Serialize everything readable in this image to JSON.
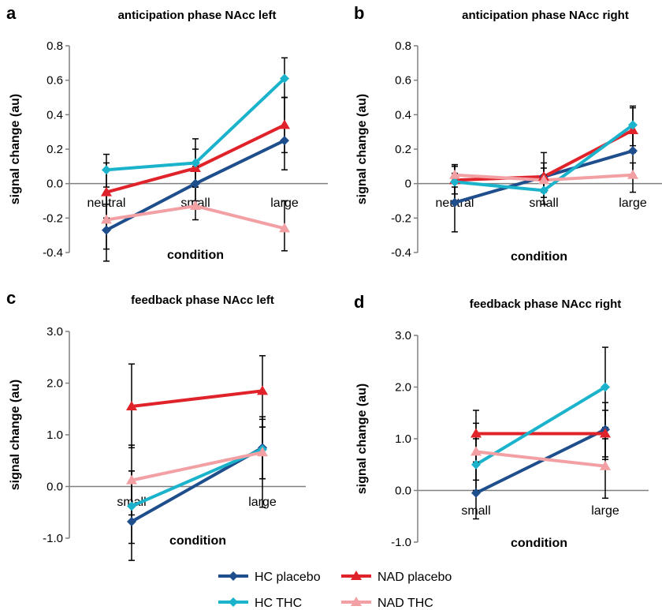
{
  "chart_data": [
    {
      "type": "line",
      "letter": "a",
      "title": "anticipation phase NAcc left",
      "xlabel": "condition",
      "ylabel": "signal change (au)",
      "categories": [
        "neutral",
        "small",
        "large"
      ],
      "ylim": [
        -0.4,
        0.8
      ],
      "yticks": [
        -0.4,
        -0.2,
        0.0,
        0.2,
        0.4,
        0.6,
        0.8
      ],
      "yticklabels": [
        "-0.4",
        "-0.2",
        "0.0",
        "0.2",
        "0.4",
        "0.6",
        "0.8"
      ],
      "grid": false,
      "series": [
        {
          "name": "HC placebo",
          "values": [
            -0.27,
            0.0,
            0.25
          ],
          "err_high": [
            -0.12,
            0.1,
            0.5
          ],
          "err_low": [
            -0.45,
            -0.1,
            0.08
          ]
        },
        {
          "name": "NAD placebo",
          "values": [
            -0.05,
            0.09,
            0.34
          ],
          "err_high": [
            0.12,
            0.2,
            0.5
          ],
          "err_low": [
            -0.2,
            -0.02,
            0.18
          ]
        },
        {
          "name": "HC THC",
          "values": [
            0.08,
            0.12,
            0.61
          ],
          "err_high": [
            0.17,
            0.26,
            0.73
          ],
          "err_low": [
            -0.02,
            -0.02,
            0.5
          ]
        },
        {
          "name": "NAD THC",
          "values": [
            -0.21,
            -0.13,
            -0.26
          ],
          "err_high": [
            -0.05,
            0.0,
            -0.1
          ],
          "err_low": [
            -0.38,
            -0.21,
            -0.39
          ]
        }
      ]
    },
    {
      "type": "line",
      "letter": "b",
      "title": "anticipation phase NAcc right",
      "xlabel": "condition",
      "ylabel": "signal change (au)",
      "categories": [
        "neutral",
        "small",
        "large"
      ],
      "ylim": [
        -0.4,
        0.8
      ],
      "yticks": [
        -0.4,
        -0.2,
        0.0,
        0.2,
        0.4,
        0.6,
        0.8
      ],
      "yticklabels": [
        "-0.4",
        "-0.2",
        "0",
        "0.2",
        "0.4",
        "0.6",
        "0.8"
      ],
      "grid": false,
      "series": [
        {
          "name": "HC placebo",
          "values": [
            -0.11,
            0.04,
            0.19
          ],
          "err_high": [
            0.06,
            0.18,
            0.3
          ],
          "err_low": [
            -0.28,
            -0.08,
            0.05
          ]
        },
        {
          "name": "NAD placebo",
          "values": [
            0.02,
            0.04,
            0.31
          ],
          "err_high": [
            0.11,
            0.12,
            0.44
          ],
          "err_low": [
            -0.06,
            -0.05,
            0.18
          ]
        },
        {
          "name": "HC THC",
          "values": [
            0.01,
            -0.04,
            0.34
          ],
          "err_high": [
            0.1,
            0.05,
            0.45
          ],
          "err_low": [
            -0.1,
            -0.12,
            0.22
          ]
        },
        {
          "name": "NAD THC",
          "values": [
            0.05,
            0.02,
            0.05
          ],
          "err_high": [
            0.11,
            0.09,
            0.12
          ],
          "err_low": [
            -0.02,
            -0.05,
            -0.05
          ]
        }
      ]
    },
    {
      "type": "line",
      "letter": "c",
      "title": "feedback phase NAcc left",
      "xlabel": "condition",
      "ylabel": "signal change (au)",
      "categories": [
        "small",
        "large"
      ],
      "ylim": [
        -1.0,
        3.0
      ],
      "yticks": [
        -1.0,
        0.0,
        1.0,
        2.0,
        3.0
      ],
      "yticklabels": [
        "-1.0",
        "0.0",
        "1.0",
        "2.0",
        "3.0"
      ],
      "grid": false,
      "series": [
        {
          "name": "HC placebo",
          "values": [
            -0.68,
            0.75
          ],
          "err_high": [
            0.3,
            1.35
          ],
          "err_low": [
            -1.43,
            0.15
          ]
        },
        {
          "name": "NAD placebo",
          "values": [
            1.55,
            1.85
          ],
          "err_high": [
            2.37,
            2.53
          ],
          "err_low": [
            0.75,
            1.15
          ]
        },
        {
          "name": "HC THC",
          "values": [
            -0.38,
            0.72
          ],
          "err_high": [
            0.3,
            1.3
          ],
          "err_low": [
            -1.1,
            -0.4
          ]
        },
        {
          "name": "NAD THC",
          "values": [
            0.12,
            0.66
          ],
          "err_high": [
            0.8,
            1.15
          ],
          "err_low": [
            -0.55,
            0.15
          ]
        }
      ]
    },
    {
      "type": "line",
      "letter": "d",
      "title": "feedback phase NAcc right",
      "xlabel": "condition",
      "ylabel": "signal change (au)",
      "categories": [
        "small",
        "large"
      ],
      "ylim": [
        -1.0,
        3.0
      ],
      "yticks": [
        -1.0,
        0.0,
        1.0,
        2.0,
        3.0
      ],
      "yticklabels": [
        "-1.0",
        "0.0",
        "1.0",
        "2.0",
        "3.0"
      ],
      "grid": false,
      "series": [
        {
          "name": "HC placebo",
          "values": [
            -0.05,
            1.18
          ],
          "err_high": [
            0.55,
            1.7
          ],
          "err_low": [
            -0.55,
            0.65
          ]
        },
        {
          "name": "NAD placebo",
          "values": [
            1.1,
            1.1
          ],
          "err_high": [
            1.55,
            1.55
          ],
          "err_low": [
            0.55,
            0.6
          ]
        },
        {
          "name": "HC THC",
          "values": [
            0.5,
            2.0
          ],
          "err_high": [
            1.0,
            2.77
          ],
          "err_low": [
            0.0,
            1.22
          ]
        },
        {
          "name": "NAD THC",
          "values": [
            0.75,
            0.47
          ],
          "err_high": [
            1.3,
            1.0
          ],
          "err_low": [
            0.2,
            -0.15
          ]
        }
      ]
    }
  ],
  "legend": {
    "placement": "bottom-center",
    "entries": [
      {
        "name": "HC placebo",
        "color": "#1f4e8c",
        "marker": "diamond"
      },
      {
        "name": "NAD placebo",
        "color": "#e0232a",
        "marker": "triangle"
      },
      {
        "name": "HC THC",
        "color": "#1bb3cc",
        "marker": "diamond"
      },
      {
        "name": "NAD THC",
        "color": "#f2a0a4",
        "marker": "triangle"
      }
    ]
  },
  "colors": {
    "HC placebo": "#1f4e8c",
    "NAD placebo": "#e0232a",
    "HC THC": "#1bb3cc",
    "NAD THC": "#f2a0a4",
    "axis": "#808080",
    "errorbar": "#000000"
  }
}
